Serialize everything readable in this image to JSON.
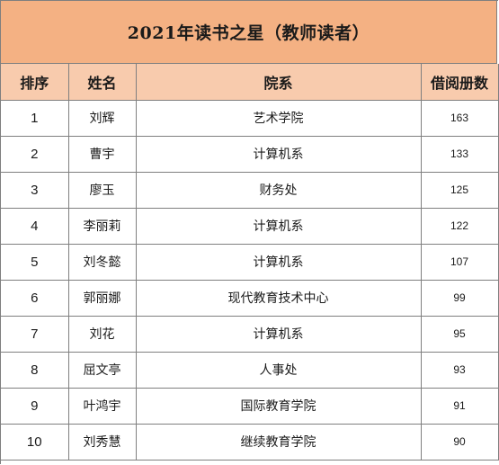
{
  "title": "2021年读书之星（教师读者）",
  "headers": {
    "rank": "排序",
    "name": "姓名",
    "dept": "院系",
    "count": "借阅册数"
  },
  "rows": [
    {
      "rank": "1",
      "name": "刘辉",
      "dept": "艺术学院",
      "count": "163"
    },
    {
      "rank": "2",
      "name": "曹宇",
      "dept": "计算机系",
      "count": "133"
    },
    {
      "rank": "3",
      "name": "廖玉",
      "dept": "财务处",
      "count": "125"
    },
    {
      "rank": "4",
      "name": "李丽莉",
      "dept": "计算机系",
      "count": "122"
    },
    {
      "rank": "5",
      "name": "刘冬懿",
      "dept": "计算机系",
      "count": "107"
    },
    {
      "rank": "6",
      "name": "郭丽娜",
      "dept": "现代教育技术中心",
      "count": "99"
    },
    {
      "rank": "7",
      "name": "刘花",
      "dept": "计算机系",
      "count": "95"
    },
    {
      "rank": "8",
      "name": "屈文亭",
      "dept": "人事处",
      "count": "93"
    },
    {
      "rank": "9",
      "name": "叶鸿宇",
      "dept": "国际教育学院",
      "count": "91"
    },
    {
      "rank": "10",
      "name": "刘秀慧",
      "dept": "继续教育学院",
      "count": "90"
    }
  ],
  "colors": {
    "title_bg": "#f4b183",
    "header_bg": "#f8cbad",
    "grid_line": "#7f7f7f"
  }
}
